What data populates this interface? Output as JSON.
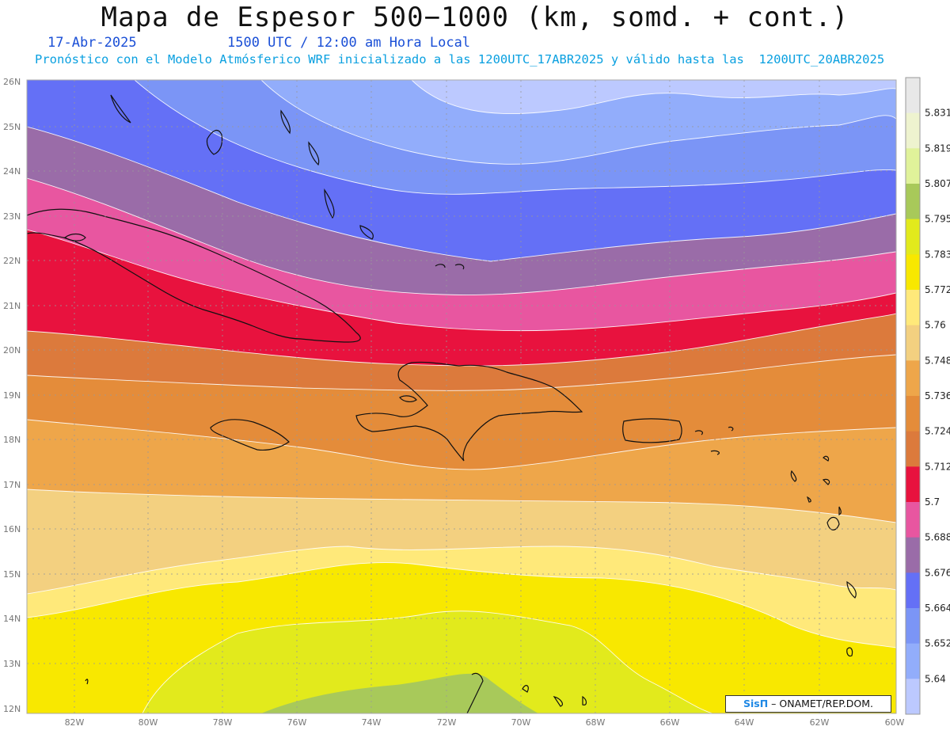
{
  "header": {
    "title": "Mapa de Espesor 500−1000 (km, somd. + cont.)",
    "date": "17-Abr-2025",
    "time": "1500 UTC / 12:00 am Hora Local",
    "forecast_note": "Pronóstico con el Modelo Atmósferico WRF inicializado a las 1200UTC_17ABR2025 y válido hasta las  1200UTC_20ABR2025"
  },
  "axes": {
    "lat_labels": [
      "26N",
      "25N",
      "24N",
      "23N",
      "22N",
      "21N",
      "20N",
      "19N",
      "18N",
      "17N",
      "16N",
      "15N",
      "14N",
      "13N",
      "12N"
    ],
    "lon_labels": [
      "82W",
      "80W",
      "78W",
      "76W",
      "74W",
      "72W",
      "70W",
      "68W",
      "66W",
      "64W",
      "62W",
      "60W"
    ]
  },
  "colorbar": {
    "labels": [
      "5.831",
      "5.819",
      "5.807",
      "5.795",
      "5.783",
      "5.772",
      "5.76",
      "5.748",
      "5.736",
      "5.724",
      "5.712",
      "5.7",
      "5.688",
      "5.676",
      "5.664",
      "5.652",
      "5.64"
    ],
    "colors": [
      "#e8e8e8",
      "#eef3cf",
      "#e0f29a",
      "#a8c95a",
      "#e2ea1c",
      "#f8e800",
      "#ffe97a",
      "#f3d080",
      "#eea64a",
      "#e48c3a",
      "#dc7a3c",
      "#e8123e",
      "#e856a0",
      "#9a6ca8",
      "#6470f6",
      "#7b95f6",
      "#92adfb",
      "#bcc9ff"
    ]
  },
  "legend_credit": {
    "brand": "SisΠ",
    "text": "– ONAMET/REP.DOM."
  },
  "field_colors": {
    "light_blue": "#bcc9ff",
    "blue1": "#92adfb",
    "blue2": "#7b95f6",
    "blue3": "#6470f6",
    "purple": "#9a6ca8",
    "pink": "#e856a0",
    "red": "#e8123e",
    "brown": "#dc7a3c",
    "orange": "#e48c3a",
    "orange2": "#eea64a",
    "tan": "#f3d080",
    "pale_yellow": "#ffe97a",
    "yellow": "#f8e800",
    "yellow_green": "#e2ea1c",
    "green": "#a8c95a"
  }
}
